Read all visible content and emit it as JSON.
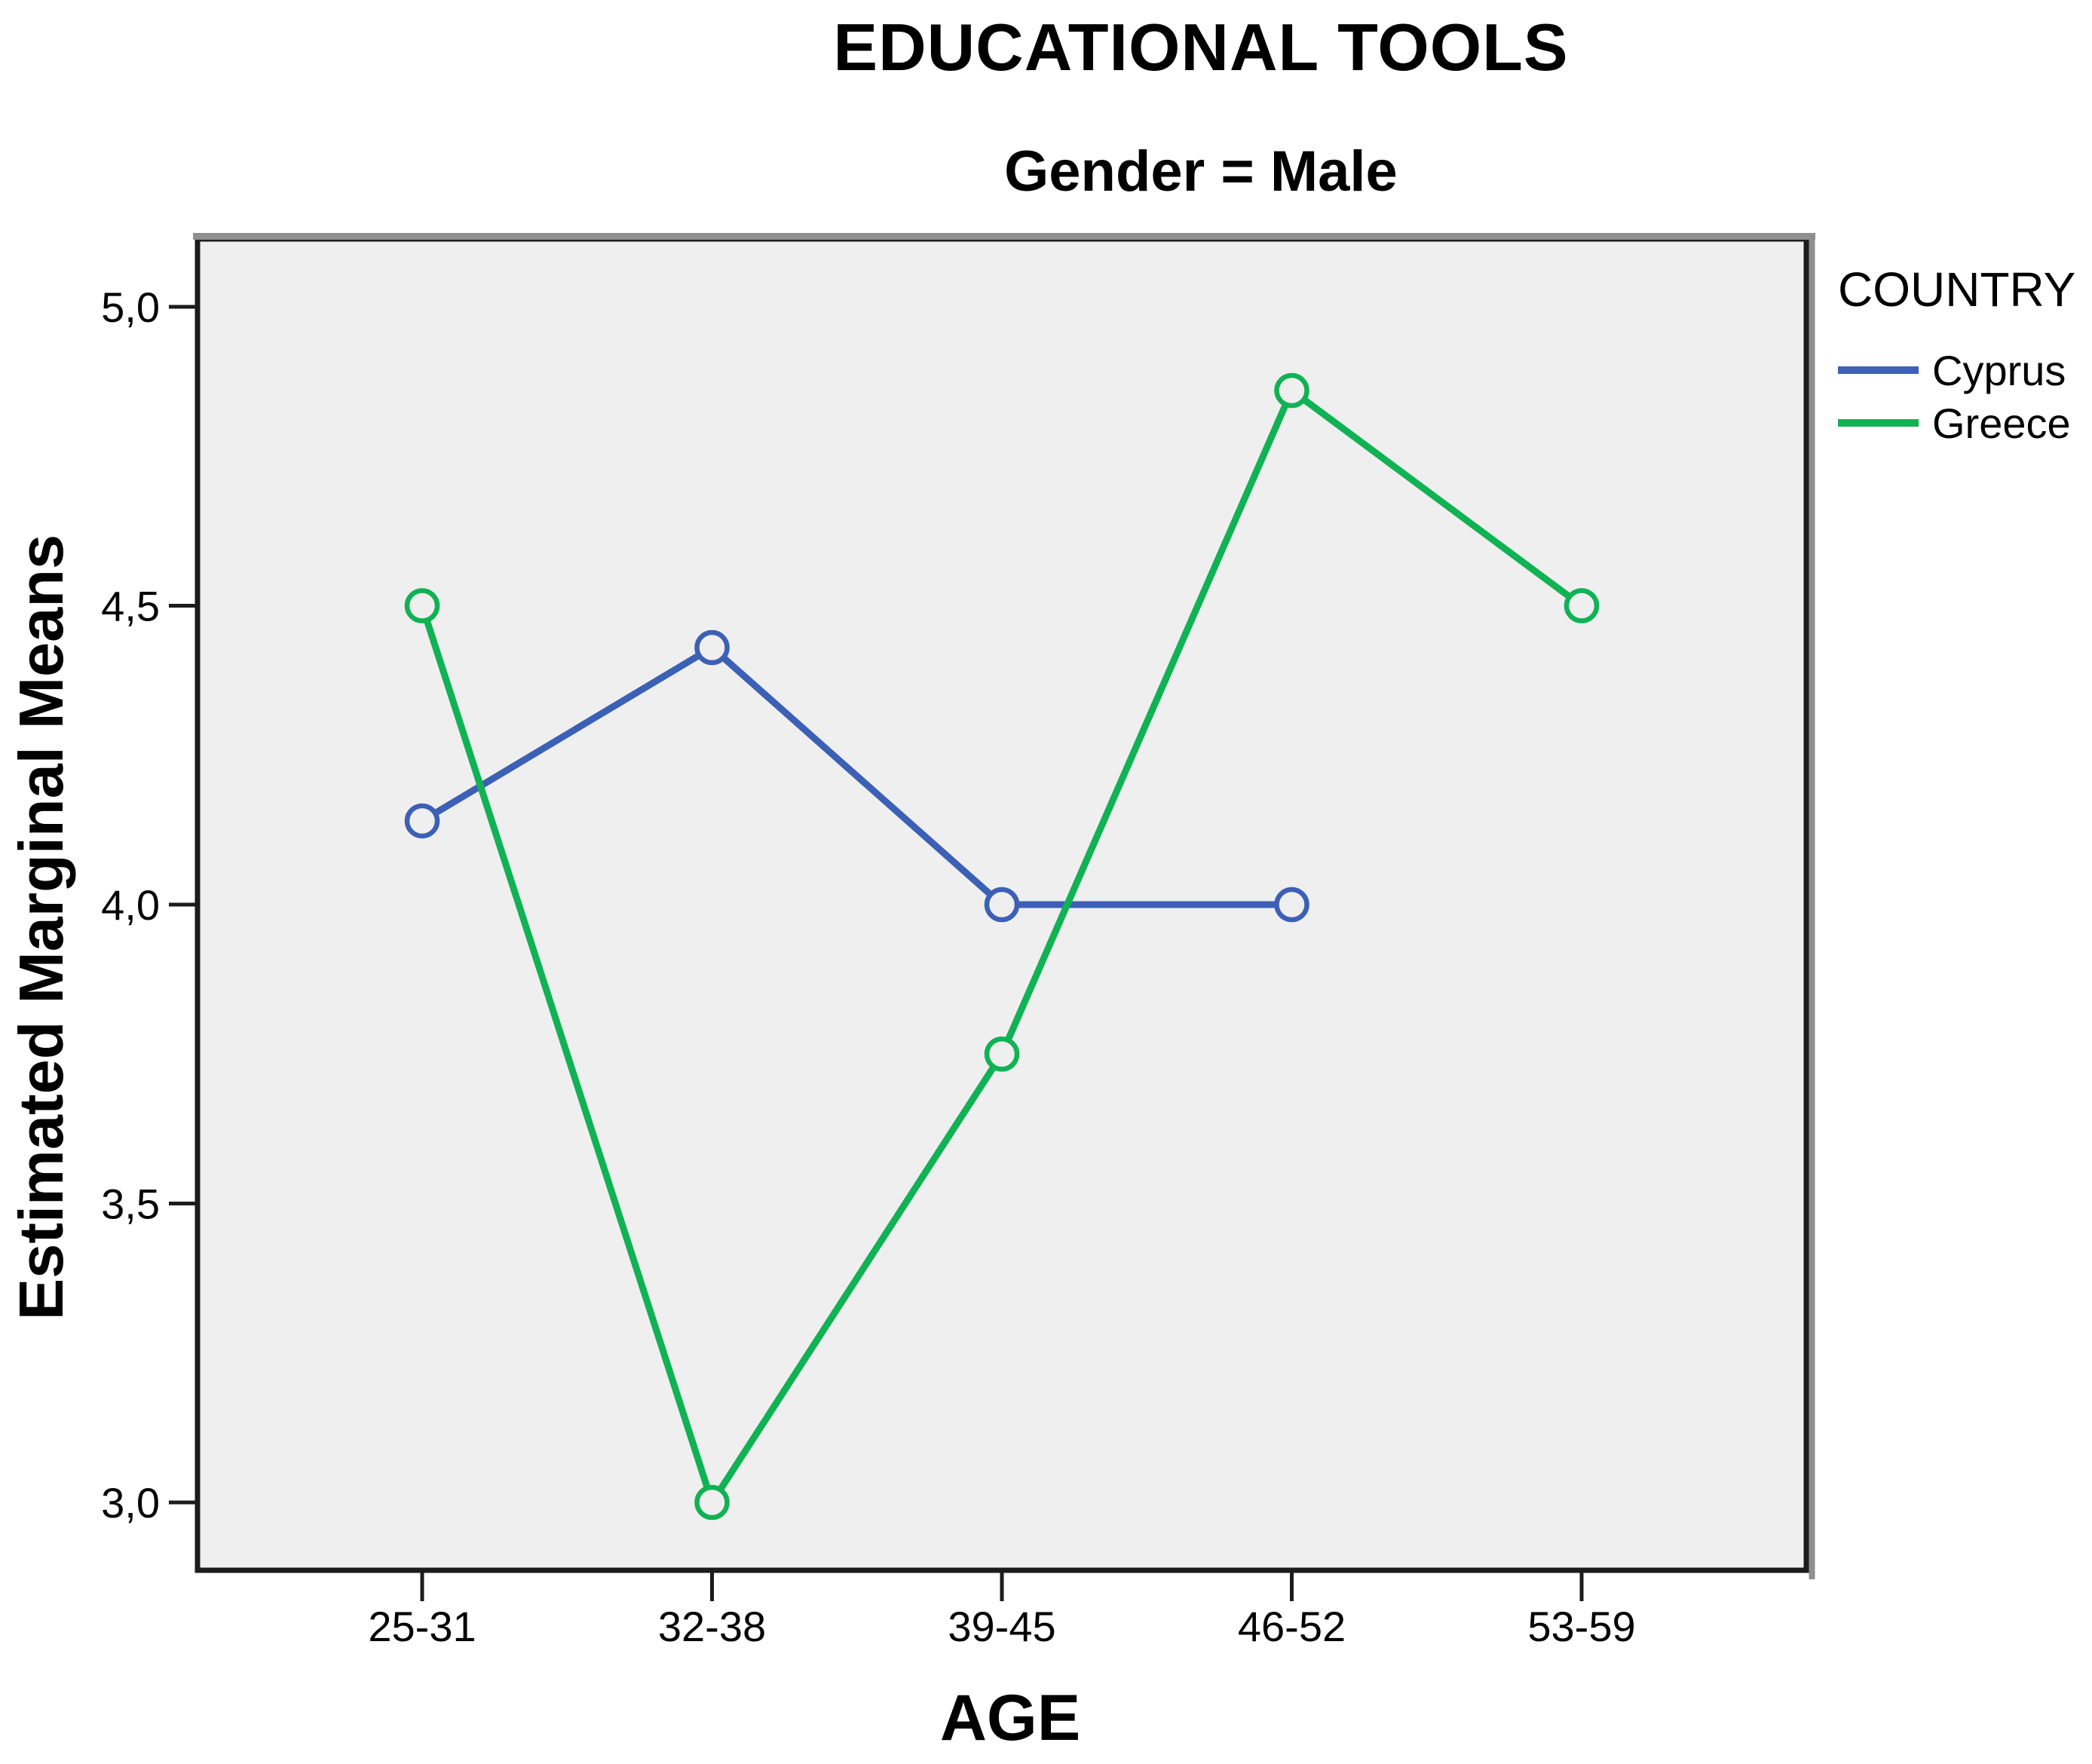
{
  "figure": {
    "title": "EDUCATIONAL TOOLS",
    "panel_subtitle": "Gender = Male"
  },
  "legend": {
    "title": "COUNTRY",
    "entries": [
      {
        "label": "Cyprus",
        "color": "#3C60B5"
      },
      {
        "label": "Greece",
        "color": "#10B254"
      }
    ]
  },
  "chart_data": {
    "type": "line",
    "title": "EDUCATIONAL TOOLS",
    "panel": "Gender = Male",
    "xlabel": "AGE",
    "ylabel": "Estimated Marginal Means",
    "categories": [
      "25-31",
      "32-38",
      "39-45",
      "46-52",
      "53-59"
    ],
    "series": [
      {
        "name": "Cyprus",
        "color": "#3C60B5",
        "marker": "open-circle",
        "values": [
          4.14,
          4.43,
          4.0,
          4.0,
          null
        ]
      },
      {
        "name": "Greece",
        "color": "#10B254",
        "marker": "open-circle",
        "values": [
          4.5,
          3.0,
          3.75,
          4.86,
          4.5
        ]
      }
    ],
    "yticks": [
      5.0,
      4.5,
      4.0,
      3.5,
      3.0
    ],
    "ytick_labels": [
      "5,0",
      "4,5",
      "4,0",
      "3,5",
      "3,0"
    ],
    "ylim": [
      2.89,
      5.11
    ],
    "grid": false,
    "decimal_separator": ",",
    "legend_title": "COUNTRY",
    "legend_position": "right-outside-top",
    "plot_background": "#EFEFEF",
    "frame_color": "#1C1C1C",
    "frame_shadow_color": "#8F8F8F"
  }
}
